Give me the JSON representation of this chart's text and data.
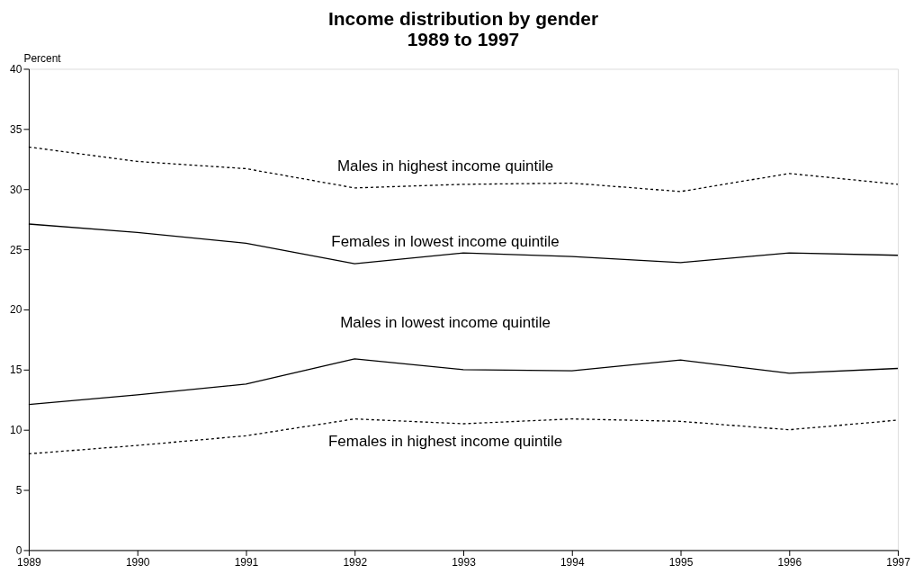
{
  "chart_data": {
    "type": "line",
    "title": [
      "Income distribution by gender",
      "1989 to 1997"
    ],
    "ylabel": "Percent",
    "x": [
      1989,
      1990,
      1991,
      1992,
      1993,
      1994,
      1995,
      1996,
      1997
    ],
    "series": [
      {
        "name": "Males in highest income quintile",
        "color": "#000000",
        "line_style": "dotted",
        "values": [
          33.5,
          32.3,
          31.7,
          30.1,
          30.4,
          30.5,
          29.8,
          31.3,
          30.4
        ]
      },
      {
        "name": "Females in lowest income quintile",
        "color": "#000000",
        "line_style": "solid",
        "values": [
          27.1,
          26.4,
          25.5,
          23.8,
          24.7,
          24.4,
          23.9,
          24.7,
          24.5
        ]
      },
      {
        "name": "Males in lowest income quintile",
        "color": "#000000",
        "line_style": "solid",
        "values": [
          12.1,
          12.9,
          13.8,
          15.9,
          15.0,
          14.9,
          15.8,
          14.7,
          15.1
        ]
      },
      {
        "name": "Females in highest income quintile",
        "color": "#000000",
        "line_style": "dotted",
        "values": [
          8.0,
          8.7,
          9.5,
          10.9,
          10.5,
          10.9,
          10.7,
          10.0,
          10.8
        ]
      }
    ],
    "xlim": [
      1989,
      1997
    ],
    "xticks": [
      1989,
      1990,
      1991,
      1992,
      1993,
      1994,
      1995,
      1996,
      1997
    ],
    "ylim": [
      0,
      40
    ],
    "yticks": [
      0,
      5,
      10,
      15,
      20,
      25,
      30,
      35,
      40
    ],
    "grid": false,
    "marker": "none"
  }
}
